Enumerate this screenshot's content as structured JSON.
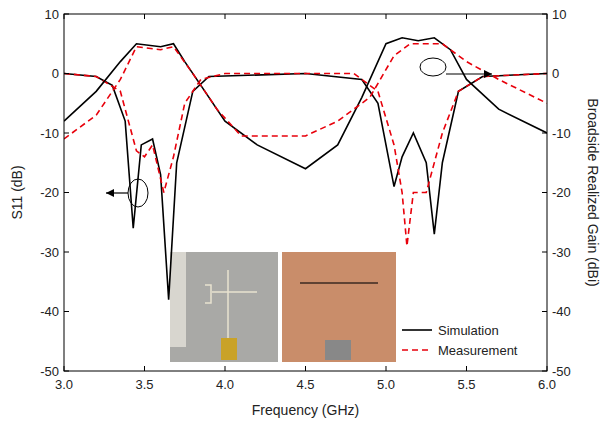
{
  "chart_data": {
    "type": "line",
    "x_label": "Frequency (GHz)",
    "y_label": "S11 (dB)",
    "y2_label": "Broadside Realized Gain (dBi)",
    "xlim": [
      3.0,
      6.0
    ],
    "xticks": [
      {
        "value": 3.0,
        "label": "3.0"
      },
      {
        "value": 3.5,
        "label": "3.5"
      },
      {
        "value": 4.0,
        "label": "4.0"
      },
      {
        "value": 4.5,
        "label": "4.5"
      },
      {
        "value": 5.0,
        "label": "5.0"
      },
      {
        "value": 5.5,
        "label": "5.5"
      },
      {
        "value": 6.0,
        "label": "6.0"
      }
    ],
    "ylim": [
      -50,
      10
    ],
    "yticks": [
      -50,
      -40,
      -30,
      -20,
      -10,
      0,
      10
    ],
    "y2lim": [
      -50,
      10
    ],
    "y2ticks": [
      -50,
      -40,
      -30,
      -20,
      -10,
      0,
      10
    ],
    "grid": false,
    "legend": "lower right",
    "series": [
      {
        "name": "Simulation",
        "color": "#000000",
        "line_style": "solid",
        "x": [
          3.0,
          3.2,
          3.3,
          3.38,
          3.43,
          3.48,
          3.55,
          3.6,
          3.65,
          3.7,
          3.8,
          3.9,
          4.5,
          4.85,
          4.95,
          5.05,
          5.1,
          5.17,
          5.25,
          5.3,
          5.35,
          5.45,
          5.6,
          6.0
        ],
        "values": [
          0,
          -0.5,
          -2,
          -8,
          -26,
          -12,
          -11,
          -17,
          -38,
          -15,
          -3,
          -0.5,
          0,
          -1,
          -5,
          -19,
          -14,
          -10,
          -15,
          -27,
          -15,
          -3,
          -0.5,
          0
        ]
      },
      {
        "name": "Measurement",
        "color": "#e8000b",
        "line_style": "dashed",
        "x": [
          3.0,
          3.2,
          3.35,
          3.45,
          3.5,
          3.55,
          3.62,
          3.68,
          3.75,
          3.85,
          4.0,
          4.8,
          4.95,
          5.05,
          5.1,
          5.13,
          5.17,
          5.25,
          5.35,
          5.45,
          5.6,
          6.0
        ],
        "values": [
          0,
          -0.5,
          -3,
          -13,
          -14,
          -12,
          -20,
          -14,
          -5,
          -1,
          0,
          0,
          -3,
          -12,
          -20,
          -29,
          -20,
          -20,
          -10,
          -3,
          -0.5,
          0
        ]
      },
      {
        "name": "Simulation",
        "color": "#000000",
        "line_style": "solid",
        "axis": "y2",
        "x": [
          3.0,
          3.2,
          3.35,
          3.45,
          3.6,
          3.68,
          3.75,
          3.85,
          4.0,
          4.2,
          4.5,
          4.7,
          4.85,
          5.0,
          5.1,
          5.2,
          5.3,
          5.4,
          5.5,
          5.7,
          6.0
        ],
        "values": [
          -8,
          -3,
          2,
          5,
          4.5,
          5,
          2,
          -2,
          -8,
          -12,
          -16,
          -12,
          -4,
          5,
          6,
          5.5,
          6,
          4,
          -1,
          -6,
          -10
        ]
      },
      {
        "name": "Measurement",
        "color": "#e8000b",
        "line_style": "dashed",
        "axis": "y2",
        "x": [
          3.0,
          3.2,
          3.35,
          3.45,
          3.6,
          3.68,
          3.8,
          3.95,
          4.1,
          4.5,
          4.7,
          4.9,
          5.05,
          5.15,
          5.35,
          5.5,
          5.7,
          6.0
        ],
        "values": [
          -11,
          -7,
          -1,
          4.5,
          4,
          4.5,
          0,
          -6,
          -10.5,
          -10.5,
          -8,
          -4,
          3,
          5,
          5,
          2,
          -1,
          -5
        ]
      }
    ]
  }
}
